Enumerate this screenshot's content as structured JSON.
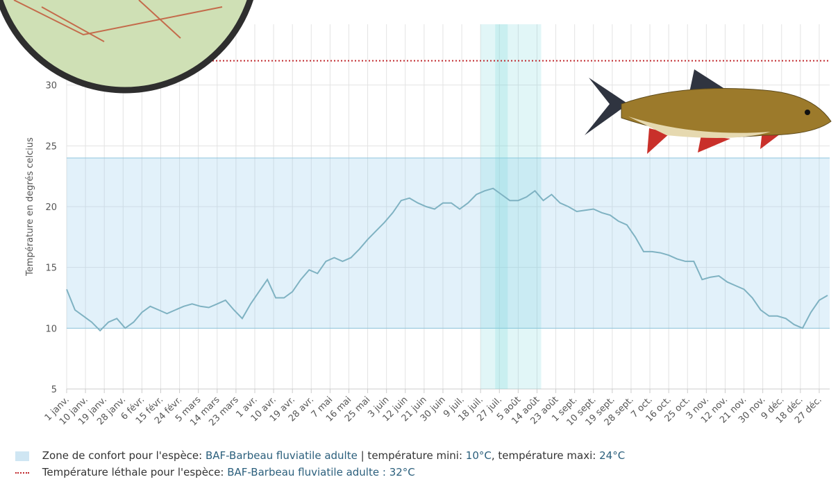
{
  "chart_data": {
    "type": "line",
    "y_label": "Température en degrés celcius",
    "color": "#7fb2c2",
    "grid": true,
    "xlim": [
      0,
      365
    ],
    "ylim": [
      5,
      35
    ],
    "yticks": [
      5,
      10,
      15,
      20,
      25,
      30
    ],
    "xticks": [
      {
        "value": 0,
        "label": "1 janv."
      },
      {
        "value": 9,
        "label": "10 janv."
      },
      {
        "value": 18,
        "label": "19 janv."
      },
      {
        "value": 27,
        "label": "28 janv."
      },
      {
        "value": 36,
        "label": "6 févr."
      },
      {
        "value": 45,
        "label": "15 févr."
      },
      {
        "value": 54,
        "label": "24 févr."
      },
      {
        "value": 63,
        "label": "5 mars"
      },
      {
        "value": 72,
        "label": "14 mars"
      },
      {
        "value": 81,
        "label": "23 mars"
      },
      {
        "value": 90,
        "label": "1 avr."
      },
      {
        "value": 99,
        "label": "10 avr."
      },
      {
        "value": 108,
        "label": "19 avr."
      },
      {
        "value": 117,
        "label": "28 avr."
      },
      {
        "value": 126,
        "label": "7 mai"
      },
      {
        "value": 135,
        "label": "16 mai"
      },
      {
        "value": 144,
        "label": "25 mai"
      },
      {
        "value": 153,
        "label": "3 juin"
      },
      {
        "value": 162,
        "label": "12 juin"
      },
      {
        "value": 171,
        "label": "21 juin"
      },
      {
        "value": 180,
        "label": "30 juin"
      },
      {
        "value": 189,
        "label": "9 juil."
      },
      {
        "value": 198,
        "label": "18 juil."
      },
      {
        "value": 207,
        "label": "27 juil."
      },
      {
        "value": 216,
        "label": "5 août"
      },
      {
        "value": 225,
        "label": "14 août"
      },
      {
        "value": 234,
        "label": "23 août"
      },
      {
        "value": 243,
        "label": "1 sept."
      },
      {
        "value": 252,
        "label": "10 sept."
      },
      {
        "value": 261,
        "label": "19 sept."
      },
      {
        "value": 270,
        "label": "28 sept."
      },
      {
        "value": 279,
        "label": "7 oct."
      },
      {
        "value": 288,
        "label": "16 oct."
      },
      {
        "value": 297,
        "label": "25 oct."
      },
      {
        "value": 306,
        "label": "3 nov."
      },
      {
        "value": 315,
        "label": "12 nov."
      },
      {
        "value": 324,
        "label": "21 nov."
      },
      {
        "value": 333,
        "label": "30 nov."
      },
      {
        "value": 342,
        "label": "9 déc."
      },
      {
        "value": 351,
        "label": "18 déc."
      },
      {
        "value": 360,
        "label": "27 déc."
      }
    ],
    "x": [
      0,
      4,
      8,
      12,
      16,
      20,
      24,
      28,
      32,
      36,
      40,
      44,
      48,
      52,
      56,
      60,
      64,
      68,
      72,
      76,
      80,
      84,
      88,
      92,
      96,
      100,
      104,
      108,
      112,
      116,
      120,
      124,
      128,
      132,
      136,
      140,
      144,
      148,
      152,
      156,
      160,
      164,
      168,
      172,
      176,
      180,
      184,
      188,
      192,
      196,
      200,
      204,
      208,
      212,
      216,
      220,
      224,
      228,
      232,
      236,
      240,
      244,
      248,
      252,
      256,
      260,
      264,
      268,
      272,
      276,
      280,
      284,
      288,
      292,
      296,
      300,
      304,
      308,
      312,
      316,
      320,
      324,
      328,
      332,
      336,
      340,
      344,
      348,
      352,
      356,
      360,
      364
    ],
    "values": [
      13.2,
      11.5,
      11,
      10.5,
      9.8,
      10.5,
      10.8,
      10,
      10.5,
      11.3,
      11.8,
      11.5,
      11.2,
      11.5,
      11.8,
      12,
      11.8,
      11.7,
      12,
      12.3,
      11.5,
      10.8,
      12,
      13,
      14,
      12.5,
      12.5,
      13,
      14,
      14.8,
      14.5,
      15.5,
      15.8,
      15.5,
      15.8,
      16.5,
      17.3,
      18,
      18.7,
      19.5,
      20.5,
      20.7,
      20.3,
      20,
      19.8,
      20.3,
      20.3,
      19.8,
      20.3,
      21,
      21.3,
      21.5,
      21,
      20.5,
      20.5,
      20.8,
      21.3,
      20.5,
      21,
      20.3,
      20,
      19.6,
      19.7,
      19.8,
      19.5,
      19.3,
      18.8,
      18.5,
      17.5,
      16.3,
      16.3,
      16.2,
      16,
      15.7,
      15.5,
      15.5,
      14,
      14.2,
      14.3,
      13.8,
      13.5,
      13.2,
      12.5,
      11.5,
      11,
      11,
      10.8,
      10.3,
      10,
      11.3,
      12.3,
      12.7
    ],
    "highlights": [
      [
        198,
        227
      ],
      [
        205,
        211
      ]
    ],
    "comfort_zone": {
      "label": "Zone de confort pour l'espèce:",
      "species": "BAF-Barbeau fluviatile adulte",
      "min_label": "| température mini:",
      "min": {
        "value": 10,
        "label": "10°C"
      },
      "max_label": ", température maxi:",
      "max": {
        "value": 24,
        "label": "24°C"
      }
    },
    "lethal": {
      "label": "Température léthale pour l'espèce:",
      "species": "BAF-Barbeau fluviatile adulte",
      "separator": ":",
      "value": {
        "value": 32,
        "label": "32°C"
      }
    }
  }
}
